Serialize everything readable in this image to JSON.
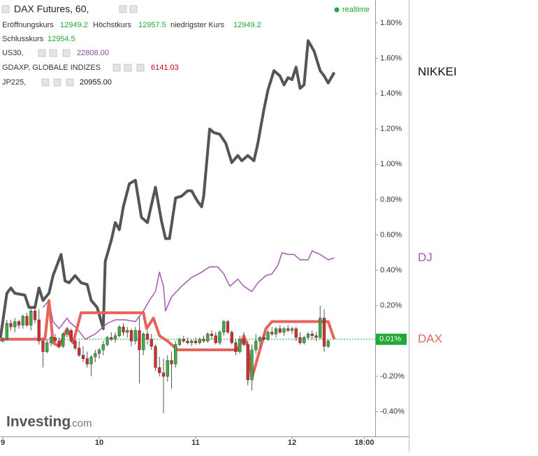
{
  "header": {
    "title": "DAX Futures, 60,",
    "realtime": "realtime",
    "ohlc": [
      {
        "label": "Eröffnungskurs",
        "value": "12949.2"
      },
      {
        "label": "Höchstkurs",
        "value": "12957.5"
      },
      {
        "label": "niedrigster Kurs",
        "value": "12949.2"
      },
      {
        "label": "Schlusskurs",
        "value": "12954.5"
      }
    ],
    "symbols": [
      {
        "name": "US30,",
        "value": "22808.00",
        "color": "#8e44ad"
      },
      {
        "name": "GDAXP, GLOBALE INDIZES",
        "value": "6141.03",
        "color": "#d0021b"
      },
      {
        "name": "JP225,",
        "value": "20955.00",
        "color": "#111111"
      }
    ],
    "logo": "Investing",
    "logo_suffix": ".com"
  },
  "chart_data": {
    "type": "candlestick",
    "ylim": [
      -0.54,
      1.93
    ],
    "xlim": [
      -0.7,
      92.7
    ],
    "yticks": [
      {
        "value": -0.4,
        "label": "-0.40%"
      },
      {
        "value": -0.2,
        "label": "-0.20%"
      },
      {
        "value": 0.2,
        "label": "0.20%"
      },
      {
        "value": 0.4,
        "label": "0.40%"
      },
      {
        "value": 0.6,
        "label": "0.60%"
      },
      {
        "value": 0.8,
        "label": "0.80%"
      },
      {
        "value": 1.0,
        "label": "1.00%"
      },
      {
        "value": 1.2,
        "label": "1.20%"
      },
      {
        "value": 1.4,
        "label": "1.40%"
      },
      {
        "value": 1.6,
        "label": "1.60%"
      },
      {
        "value": 1.8,
        "label": "1.80%"
      }
    ],
    "xticks": [
      {
        "value": 0,
        "label": "9"
      },
      {
        "value": 24,
        "label": "10"
      },
      {
        "value": 48,
        "label": "11"
      },
      {
        "value": 72,
        "label": "12"
      },
      {
        "value": 90,
        "label": "18:00"
      }
    ],
    "last_value": {
      "value": 0.01,
      "label": "0.01%",
      "color": "#21a837"
    },
    "up_color": "#3cb043",
    "down_color": "#d92b2b",
    "candles": {
      "x": [
        0,
        1,
        2,
        3,
        4,
        5,
        6,
        7,
        8,
        9,
        10,
        11,
        12,
        13,
        14,
        15,
        16,
        17,
        18,
        19,
        20,
        21,
        22,
        23,
        24,
        25,
        26,
        27,
        28,
        29,
        30,
        31,
        32,
        33,
        34,
        35,
        36,
        37,
        38,
        39,
        40,
        41,
        42,
        43,
        44,
        45,
        46,
        47,
        48,
        49,
        50,
        51,
        52,
        53,
        54,
        55,
        56,
        57,
        58,
        59,
        60,
        61,
        62,
        63,
        64,
        65,
        66,
        67,
        68,
        69,
        70,
        71,
        72,
        73,
        74,
        75,
        76,
        77,
        78,
        79,
        80,
        81
      ],
      "open": [
        0,
        0.01,
        0.1,
        0.08,
        0.11,
        0.09,
        0.14,
        0.09,
        0.17,
        0.12,
        0,
        -0.06,
        -0.01,
        0.02,
        0,
        -0.03,
        0.04,
        0.06,
        0,
        -0.04,
        -0.08,
        -0.1,
        -0.13,
        -0.09,
        -0.07,
        -0.05,
        -0.02,
        0.02,
        0.01,
        0.03,
        0.08,
        0.05,
        0.06,
        0,
        0.06,
        -0.05,
        0.04,
        0.01,
        -0.03,
        -0.15,
        -0.18,
        -0.2,
        -0.11,
        -0.13,
        -0.02,
        0.01,
        0,
        -0.01,
        0,
        -0.01,
        0.01,
        0,
        0.04,
        0.03,
        -0.01,
        0.05,
        0.11,
        0.05,
        -0.01,
        -0.06,
        0.01,
        -0.02,
        -0.22,
        -0.05,
        0,
        0.02,
        0.01,
        0.05,
        0.04,
        0.07,
        0.05,
        0.07,
        0.06,
        0.07,
        0.02,
        -0.01,
        0.02,
        0.04,
        0.03,
        0.02,
        0.13,
        -0.03
      ],
      "high": [
        0.02,
        0.12,
        0.12,
        0.13,
        0.12,
        0.15,
        0.16,
        0.19,
        0.19,
        0.18,
        0.02,
        0.01,
        0.03,
        0.04,
        0.02,
        0.05,
        0.07,
        0.07,
        0.01,
        0,
        -0.03,
        -0.06,
        -0.08,
        -0.05,
        -0.04,
        0,
        0.03,
        0.05,
        0.05,
        0.09,
        0.1,
        0.08,
        0.07,
        0.08,
        0.14,
        0.05,
        0.06,
        0.04,
        -0.02,
        -0.09,
        -0.1,
        -0.08,
        -0.06,
        0,
        0.02,
        0.03,
        0.02,
        0.01,
        0.02,
        0.02,
        0.03,
        0.05,
        0.06,
        0.05,
        0.06,
        0.12,
        0.12,
        0.06,
        0.01,
        0.03,
        0.05,
        0,
        -0.02,
        0.04,
        0.03,
        0.04,
        0.06,
        0.08,
        0.08,
        0.09,
        0.08,
        0.09,
        0.08,
        0.08,
        0.05,
        0.03,
        0.05,
        0.06,
        0.05,
        0.2,
        0.18,
        0.01
      ],
      "low": [
        -0.01,
        0,
        0.06,
        0.05,
        0.07,
        0.07,
        0.08,
        0.06,
        0.1,
        -0.02,
        -0.15,
        -0.07,
        -0.03,
        -0.01,
        -0.04,
        -0.04,
        0.02,
        -0.01,
        -0.05,
        -0.09,
        -0.12,
        -0.15,
        -0.2,
        -0.12,
        -0.1,
        -0.08,
        -0.03,
        0,
        -0.01,
        0.02,
        0.03,
        0.02,
        -0.03,
        -0.02,
        -0.24,
        -0.08,
        -0.02,
        -0.05,
        -0.17,
        -0.2,
        -0.41,
        -0.23,
        -0.27,
        -0.15,
        -0.03,
        -0.01,
        -0.02,
        -0.03,
        -0.02,
        -0.02,
        -0.01,
        -0.01,
        0.01,
        -0.02,
        -0.02,
        0.03,
        0.04,
        -0.02,
        -0.08,
        -0.07,
        -0.03,
        -0.25,
        -0.28,
        -0.07,
        -0.04,
        0,
        0,
        0.03,
        0.02,
        0.04,
        0.03,
        0.05,
        0.04,
        0,
        -0.02,
        -0.02,
        0.01,
        0.01,
        0,
        0.01,
        -0.06,
        -0.04
      ],
      "close": [
        0.01,
        0.1,
        0.08,
        0.11,
        0.09,
        0.14,
        0.09,
        0.17,
        0.12,
        0,
        -0.06,
        -0.01,
        0.02,
        0,
        -0.03,
        0.04,
        0.06,
        0,
        -0.04,
        -0.08,
        -0.1,
        -0.13,
        -0.09,
        -0.07,
        -0.05,
        -0.02,
        0.02,
        0.01,
        0.03,
        0.08,
        0.05,
        0.06,
        0,
        0.06,
        -0.05,
        0.04,
        0.01,
        -0.03,
        -0.15,
        -0.18,
        -0.2,
        -0.11,
        -0.13,
        -0.02,
        0.01,
        0,
        -0.01,
        0,
        -0.01,
        0.01,
        0,
        0.04,
        0.03,
        -0.01,
        0.05,
        0.11,
        0.05,
        -0.01,
        -0.06,
        0.01,
        -0.02,
        -0.22,
        -0.05,
        0,
        0.02,
        0.01,
        0.05,
        0.04,
        0.07,
        0.05,
        0.07,
        0.06,
        0.07,
        0.02,
        -0.01,
        0.02,
        0.04,
        0.03,
        0.02,
        0.13,
        -0.03,
        0
      ]
    },
    "series": [
      {
        "name": "NIKKEI",
        "color": "#555555",
        "width": 4,
        "x": [
          -0.7,
          1,
          2,
          3,
          5.5,
          6.5,
          8,
          9,
          10,
          11.5,
          12.5,
          14.5,
          15.5,
          16.5,
          18,
          19.5,
          21,
          22,
          23.5,
          25,
          25.5,
          27,
          28,
          29,
          30,
          31.5,
          33,
          34.5,
          36,
          38,
          39.5,
          40.5,
          41.5,
          43,
          44.5,
          46,
          47,
          48.5,
          49.5,
          50,
          51.5,
          52.5,
          54,
          55.5,
          57,
          58.5,
          59.5,
          61,
          62.5,
          63.5,
          65,
          66,
          67.5,
          69,
          70,
          71,
          72,
          73,
          74,
          75,
          76,
          77.5,
          79,
          80,
          81,
          82.5
        ],
        "values": [
          0,
          0.27,
          0.3,
          0.27,
          0.26,
          0.19,
          0.19,
          0.3,
          0.23,
          0.27,
          0.37,
          0.49,
          0.34,
          0.33,
          0.37,
          0.33,
          0.32,
          0.23,
          0.19,
          0.07,
          0.45,
          0.57,
          0.67,
          0.63,
          0.76,
          0.89,
          0.91,
          0.7,
          0.67,
          0.87,
          0.68,
          0.58,
          0.58,
          0.81,
          0.82,
          0.85,
          0.85,
          0.79,
          0.76,
          0.82,
          1.2,
          1.18,
          1.17,
          1.12,
          1.01,
          1.05,
          1.02,
          1.05,
          1.02,
          1.12,
          1.31,
          1.42,
          1.53,
          1.5,
          1.45,
          1.49,
          1.48,
          1.55,
          1.43,
          1.45,
          1.7,
          1.64,
          1.53,
          1.5,
          1.46,
          1.52
        ]
      },
      {
        "name": "DJ",
        "color": "#a457b0",
        "width": 1.5,
        "x": [
          10,
          11.5,
          12.5,
          14,
          16,
          16.5,
          18.5,
          20.5,
          23,
          24.5,
          26,
          28,
          30.5,
          33,
          35,
          36.5,
          38,
          39,
          40,
          40.5,
          42,
          44.5,
          47,
          49.5,
          51.5,
          53.5,
          55,
          56.5,
          58.5,
          60,
          62,
          63.5,
          65.5,
          67,
          68.5,
          69.5,
          71,
          72.5,
          74,
          76,
          77,
          79,
          81,
          82.5
        ],
        "values": [
          0.19,
          0.23,
          0.11,
          0.07,
          0.13,
          0.11,
          0.07,
          0.01,
          0.04,
          0.07,
          0.1,
          0.12,
          0.12,
          0.11,
          0.17,
          0.23,
          0.28,
          0.39,
          0.31,
          0.17,
          0.25,
          0.31,
          0.36,
          0.39,
          0.42,
          0.42,
          0.38,
          0.31,
          0.35,
          0.31,
          0.28,
          0.33,
          0.37,
          0.38,
          0.43,
          0.5,
          0.49,
          0.49,
          0.46,
          0.46,
          0.51,
          0.49,
          0.46,
          0.47
        ]
      },
      {
        "name": "DAX",
        "color": "#e8635b",
        "width": 4,
        "x": [
          -0.7,
          10.5,
          11.5,
          12.5,
          14,
          16,
          17.5,
          19.5,
          35,
          35.8,
          37.5,
          39,
          41,
          43.5,
          58.5,
          60,
          61,
          62,
          63,
          65.5,
          67,
          81,
          82.5
        ],
        "values": [
          0.01,
          0.01,
          0.23,
          -0.01,
          -0.03,
          0.07,
          -0.01,
          0.16,
          0.16,
          0.07,
          0.13,
          0.03,
          0,
          -0.05,
          -0.05,
          0.03,
          -0.03,
          -0.21,
          -0.13,
          0.07,
          0.11,
          0.11,
          0.01
        ]
      }
    ]
  }
}
